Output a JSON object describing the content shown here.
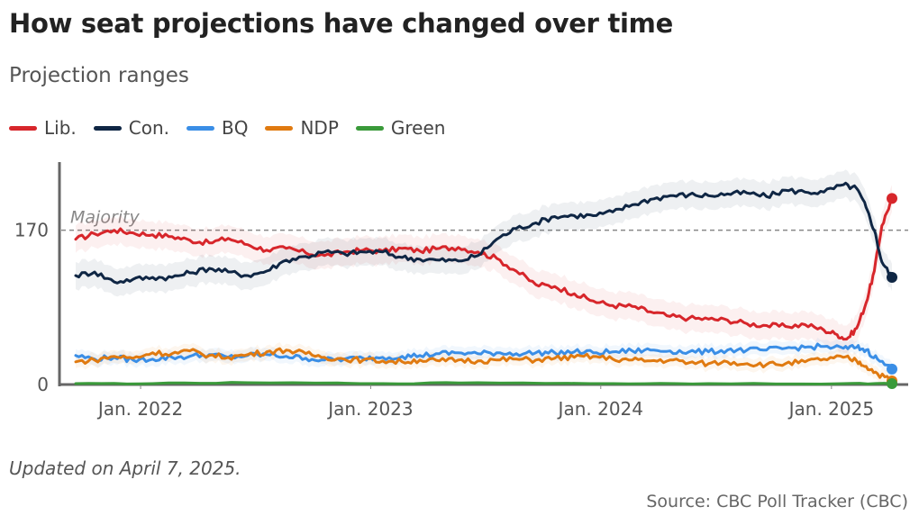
{
  "title": "How seat projections have changed over time",
  "subtitle": "Projection ranges",
  "footer": {
    "updated": "Updated on April 7, 2025.",
    "source": "Source: CBC Poll Tracker (CBC)"
  },
  "chart_data": {
    "type": "line",
    "title": "How seat projections have changed over time",
    "subtitle": "Projection ranges",
    "x_start": "2021-09-20",
    "x_end": "2025-04-07",
    "x_ticks": [
      {
        "date": "2022-01-01",
        "label": "Jan. 2022"
      },
      {
        "date": "2023-01-01",
        "label": "Jan. 2023"
      },
      {
        "date": "2024-01-01",
        "label": "Jan. 2024"
      },
      {
        "date": "2025-01-01",
        "label": "Jan. 2025"
      }
    ],
    "y_ticks": [
      0,
      170
    ],
    "ylim": [
      0,
      245
    ],
    "reference_line": {
      "value": 170,
      "label": "Majority"
    },
    "series": [
      {
        "name": "Lib.",
        "color": "#d7262b",
        "band": 15,
        "points": [
          [
            "2021-09-20",
            160
          ],
          [
            "2021-10-20",
            166
          ],
          [
            "2021-11-20",
            170
          ],
          [
            "2021-12-20",
            167
          ],
          [
            "2022-01-20",
            165
          ],
          [
            "2022-02-20",
            163
          ],
          [
            "2022-03-20",
            159
          ],
          [
            "2022-04-20",
            156
          ],
          [
            "2022-05-20",
            161
          ],
          [
            "2022-06-20",
            154
          ],
          [
            "2022-07-20",
            148
          ],
          [
            "2022-08-20",
            150
          ],
          [
            "2022-09-20",
            145
          ],
          [
            "2022-10-20",
            142
          ],
          [
            "2022-11-20",
            146
          ],
          [
            "2022-12-20",
            148
          ],
          [
            "2023-01-20",
            147
          ],
          [
            "2023-02-20",
            150
          ],
          [
            "2023-03-20",
            147
          ],
          [
            "2023-04-20",
            150
          ],
          [
            "2023-05-20",
            151
          ],
          [
            "2023-06-20",
            146
          ],
          [
            "2023-07-20",
            139
          ],
          [
            "2023-08-20",
            125
          ],
          [
            "2023-09-20",
            110
          ],
          [
            "2023-10-20",
            108
          ],
          [
            "2023-11-20",
            100
          ],
          [
            "2023-12-20",
            92
          ],
          [
            "2024-01-20",
            87
          ],
          [
            "2024-02-20",
            86
          ],
          [
            "2024-03-20",
            80
          ],
          [
            "2024-04-20",
            75
          ],
          [
            "2024-05-20",
            73
          ],
          [
            "2024-06-20",
            72
          ],
          [
            "2024-07-20",
            71
          ],
          [
            "2024-08-20",
            67
          ],
          [
            "2024-09-20",
            65
          ],
          [
            "2024-10-20",
            64
          ],
          [
            "2024-11-20",
            66
          ],
          [
            "2024-12-20",
            60
          ],
          [
            "2025-01-10",
            55
          ],
          [
            "2025-01-25",
            50
          ],
          [
            "2025-02-10",
            62
          ],
          [
            "2025-02-25",
            90
          ],
          [
            "2025-03-10",
            125
          ],
          [
            "2025-03-22",
            175
          ],
          [
            "2025-04-07",
            205
          ]
        ]
      },
      {
        "name": "Con.",
        "color": "#0f2644",
        "band": 15,
        "points": [
          [
            "2021-09-20",
            120
          ],
          [
            "2021-10-20",
            124
          ],
          [
            "2021-11-20",
            113
          ],
          [
            "2021-12-20",
            116
          ],
          [
            "2022-01-20",
            118
          ],
          [
            "2022-02-20",
            118
          ],
          [
            "2022-03-20",
            123
          ],
          [
            "2022-04-20",
            128
          ],
          [
            "2022-05-20",
            124
          ],
          [
            "2022-06-20",
            120
          ],
          [
            "2022-07-20",
            125
          ],
          [
            "2022-08-20",
            137
          ],
          [
            "2022-09-20",
            141
          ],
          [
            "2022-10-20",
            146
          ],
          [
            "2022-11-20",
            144
          ],
          [
            "2022-12-20",
            146
          ],
          [
            "2023-01-20",
            146
          ],
          [
            "2023-02-20",
            140
          ],
          [
            "2023-03-20",
            138
          ],
          [
            "2023-04-20",
            137
          ],
          [
            "2023-05-20",
            136
          ],
          [
            "2023-06-20",
            142
          ],
          [
            "2023-07-20",
            160
          ],
          [
            "2023-08-20",
            172
          ],
          [
            "2023-09-20",
            178
          ],
          [
            "2023-10-20",
            185
          ],
          [
            "2023-11-20",
            186
          ],
          [
            "2023-12-20",
            186
          ],
          [
            "2024-01-20",
            190
          ],
          [
            "2024-02-20",
            198
          ],
          [
            "2024-03-20",
            204
          ],
          [
            "2024-04-20",
            208
          ],
          [
            "2024-05-20",
            209
          ],
          [
            "2024-06-20",
            208
          ],
          [
            "2024-07-20",
            210
          ],
          [
            "2024-08-20",
            211
          ],
          [
            "2024-09-20",
            207
          ],
          [
            "2024-10-20",
            214
          ],
          [
            "2024-11-20",
            212
          ],
          [
            "2024-12-20",
            212
          ],
          [
            "2025-01-20",
            220
          ],
          [
            "2025-02-10",
            216
          ],
          [
            "2025-02-25",
            195
          ],
          [
            "2025-03-10",
            170
          ],
          [
            "2025-03-22",
            135
          ],
          [
            "2025-04-07",
            118
          ]
        ]
      },
      {
        "name": "BQ",
        "color": "#3a8ee6",
        "band": 7,
        "points": [
          [
            "2021-09-20",
            32
          ],
          [
            "2021-10-20",
            28
          ],
          [
            "2021-11-20",
            30
          ],
          [
            "2021-12-20",
            27
          ],
          [
            "2022-01-20",
            28
          ],
          [
            "2022-02-20",
            30
          ],
          [
            "2022-03-20",
            31
          ],
          [
            "2022-04-20",
            33
          ],
          [
            "2022-05-20",
            30
          ],
          [
            "2022-06-20",
            32
          ],
          [
            "2022-07-20",
            33
          ],
          [
            "2022-08-20",
            31
          ],
          [
            "2022-09-20",
            29
          ],
          [
            "2022-10-20",
            27
          ],
          [
            "2022-11-20",
            28
          ],
          [
            "2022-12-20",
            29
          ],
          [
            "2023-01-20",
            30
          ],
          [
            "2023-02-20",
            31
          ],
          [
            "2023-03-20",
            32
          ],
          [
            "2023-04-20",
            34
          ],
          [
            "2023-05-20",
            35
          ],
          [
            "2023-06-20",
            34
          ],
          [
            "2023-07-20",
            35
          ],
          [
            "2023-08-20",
            34
          ],
          [
            "2023-09-20",
            35
          ],
          [
            "2023-10-20",
            35
          ],
          [
            "2023-11-20",
            36
          ],
          [
            "2023-12-20",
            35
          ],
          [
            "2024-01-20",
            36
          ],
          [
            "2024-02-20",
            37
          ],
          [
            "2024-03-20",
            38
          ],
          [
            "2024-04-20",
            37
          ],
          [
            "2024-05-20",
            36
          ],
          [
            "2024-06-20",
            36
          ],
          [
            "2024-07-20",
            38
          ],
          [
            "2024-08-20",
            38
          ],
          [
            "2024-09-20",
            38
          ],
          [
            "2024-10-20",
            40
          ],
          [
            "2024-11-20",
            41
          ],
          [
            "2024-12-20",
            42
          ],
          [
            "2025-01-20",
            40
          ],
          [
            "2025-02-10",
            41
          ],
          [
            "2025-02-25",
            38
          ],
          [
            "2025-03-15",
            28
          ],
          [
            "2025-04-07",
            17
          ]
        ]
      },
      {
        "name": "NDP",
        "color": "#e07a10",
        "band": 7,
        "points": [
          [
            "2021-09-20",
            25
          ],
          [
            "2021-10-20",
            27
          ],
          [
            "2021-11-20",
            31
          ],
          [
            "2021-12-20",
            29
          ],
          [
            "2022-01-20",
            35
          ],
          [
            "2022-02-20",
            34
          ],
          [
            "2022-03-20",
            37
          ],
          [
            "2022-04-20",
            32
          ],
          [
            "2022-05-20",
            30
          ],
          [
            "2022-06-20",
            33
          ],
          [
            "2022-07-20",
            36
          ],
          [
            "2022-08-20",
            38
          ],
          [
            "2022-09-20",
            34
          ],
          [
            "2022-10-20",
            30
          ],
          [
            "2022-11-20",
            28
          ],
          [
            "2022-12-20",
            27
          ],
          [
            "2023-01-20",
            26
          ],
          [
            "2023-02-20",
            25
          ],
          [
            "2023-03-20",
            27
          ],
          [
            "2023-04-20",
            26
          ],
          [
            "2023-05-20",
            27
          ],
          [
            "2023-06-20",
            26
          ],
          [
            "2023-07-20",
            27
          ],
          [
            "2023-08-20",
            28
          ],
          [
            "2023-09-20",
            27
          ],
          [
            "2023-10-20",
            29
          ],
          [
            "2023-11-20",
            30
          ],
          [
            "2023-12-20",
            31
          ],
          [
            "2024-01-20",
            28
          ],
          [
            "2024-02-20",
            27
          ],
          [
            "2024-03-20",
            26
          ],
          [
            "2024-04-20",
            27
          ],
          [
            "2024-05-20",
            24
          ],
          [
            "2024-06-20",
            23
          ],
          [
            "2024-07-20",
            25
          ],
          [
            "2024-08-20",
            23
          ],
          [
            "2024-09-20",
            22
          ],
          [
            "2024-10-20",
            23
          ],
          [
            "2024-11-20",
            25
          ],
          [
            "2024-12-20",
            28
          ],
          [
            "2025-01-20",
            30
          ],
          [
            "2025-02-10",
            26
          ],
          [
            "2025-02-25",
            20
          ],
          [
            "2025-03-15",
            12
          ],
          [
            "2025-04-07",
            4
          ]
        ]
      },
      {
        "name": "Green",
        "color": "#3a9a3a",
        "band": 2,
        "points": [
          [
            "2021-09-20",
            1
          ],
          [
            "2022-01-20",
            1
          ],
          [
            "2022-06-20",
            2
          ],
          [
            "2023-01-20",
            1
          ],
          [
            "2023-06-20",
            2
          ],
          [
            "2024-01-20",
            1
          ],
          [
            "2024-06-20",
            1
          ],
          [
            "2025-01-20",
            1
          ],
          [
            "2025-04-07",
            1
          ]
        ]
      }
    ]
  }
}
